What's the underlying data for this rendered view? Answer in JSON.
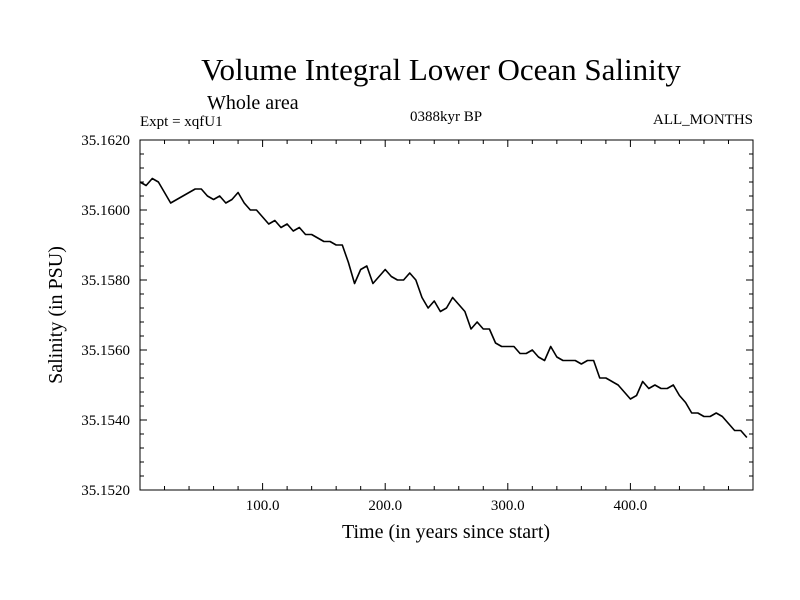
{
  "chart_data": {
    "type": "line",
    "title": "Volume Integral Lower Ocean Salinity",
    "subtitle": "Whole area",
    "left_label": "Expt = xqfU1",
    "center_label": "0388kyr BP",
    "right_label": "ALL_MONTHS",
    "xlabel": "Time (in years since start)",
    "ylabel": "Salinity (in PSU)",
    "xlim": [
      0,
      500
    ],
    "ylim": [
      35.152,
      35.162
    ],
    "x_ticks": [
      100,
      200,
      300,
      400
    ],
    "x_tick_labels": [
      "100.0",
      "200.0",
      "300.0",
      "400.0"
    ],
    "y_ticks": [
      35.152,
      35.154,
      35.156,
      35.158,
      35.16,
      35.162
    ],
    "y_tick_labels": [
      "35.1520",
      "35.1540",
      "35.1560",
      "35.1580",
      "35.1600",
      "35.1620"
    ],
    "grid": false,
    "series": [
      {
        "name": "Salinity",
        "x": [
          0,
          5,
          10,
          15,
          20,
          25,
          30,
          35,
          40,
          45,
          50,
          55,
          60,
          65,
          70,
          75,
          80,
          85,
          90,
          95,
          100,
          105,
          110,
          115,
          120,
          125,
          130,
          135,
          140,
          145,
          150,
          155,
          160,
          165,
          170,
          175,
          180,
          185,
          190,
          195,
          200,
          205,
          210,
          215,
          220,
          225,
          230,
          235,
          240,
          245,
          250,
          255,
          260,
          265,
          270,
          275,
          280,
          285,
          290,
          295,
          300,
          305,
          310,
          315,
          320,
          325,
          330,
          335,
          340,
          345,
          350,
          355,
          360,
          365,
          370,
          375,
          380,
          385,
          390,
          395,
          400,
          405,
          410,
          415,
          420,
          425,
          430,
          435,
          440,
          445,
          450,
          455,
          460,
          465,
          470,
          475,
          480,
          485,
          490,
          495
        ],
        "values": [
          35.1608,
          35.1607,
          35.1609,
          35.1608,
          35.1605,
          35.1602,
          35.1603,
          35.1604,
          35.1605,
          35.1606,
          35.1606,
          35.1604,
          35.1603,
          35.1604,
          35.1602,
          35.1603,
          35.1605,
          35.1602,
          35.16,
          35.16,
          35.1598,
          35.1596,
          35.1597,
          35.1595,
          35.1596,
          35.1594,
          35.1595,
          35.1593,
          35.1593,
          35.1592,
          35.1591,
          35.1591,
          35.159,
          35.159,
          35.1585,
          35.1579,
          35.1583,
          35.1584,
          35.1579,
          35.1581,
          35.1583,
          35.1581,
          35.158,
          35.158,
          35.1582,
          35.158,
          35.1575,
          35.1572,
          35.1574,
          35.1571,
          35.1572,
          35.1575,
          35.1573,
          35.1571,
          35.1566,
          35.1568,
          35.1566,
          35.1566,
          35.1562,
          35.1561,
          35.1561,
          35.1561,
          35.1559,
          35.1559,
          35.156,
          35.1558,
          35.1557,
          35.1561,
          35.1558,
          35.1557,
          35.1557,
          35.1557,
          35.1556,
          35.1557,
          35.1557,
          35.1552,
          35.1552,
          35.1551,
          35.155,
          35.1548,
          35.1546,
          35.1547,
          35.1551,
          35.1549,
          35.155,
          35.1549,
          35.1549,
          35.155,
          35.1547,
          35.1545,
          35.1542,
          35.1542,
          35.1541,
          35.1541,
          35.1542,
          35.1541,
          35.1539,
          35.1537,
          35.1537,
          35.1535
        ]
      }
    ]
  }
}
